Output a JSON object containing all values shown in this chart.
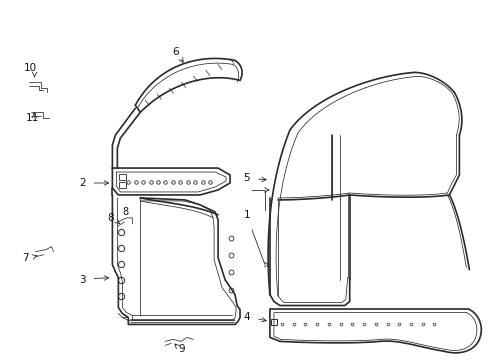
{
  "bg_color": "#ffffff",
  "line_color": "#2a2a2a",
  "text_color": "#111111",
  "fig_width": 4.9,
  "fig_height": 3.6,
  "dpi": 100
}
